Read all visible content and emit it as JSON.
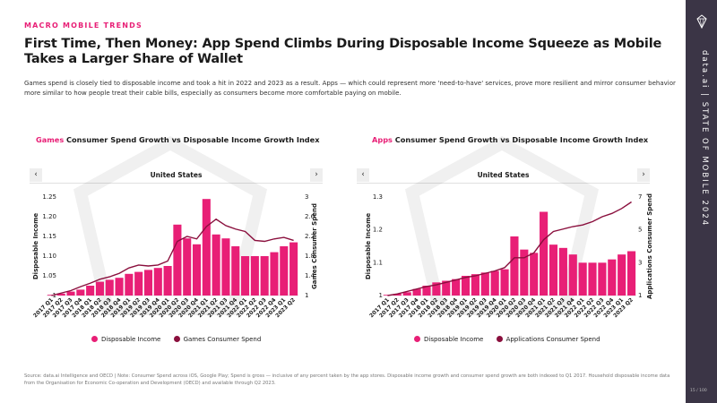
{
  "header": {
    "eyebrow": "MACRO MOBILE TRENDS",
    "title": "First Time, Then Money: App Spend Climbs During Disposable Income Squeeze as Mobile Takes a Larger Share of Wallet",
    "subtitle": "Games spend is closely tied to disposable income and took a hit in 2022 and 2023 as a result. Apps — which could represent more 'need-to-have' services, prove more resilient and mirror consumer behavior more similar to how people treat their cable bills, especially as consumers become more comfortable paying on mobile."
  },
  "sidebar": {
    "brand": "data.ai",
    "separator": "|",
    "report": "STATE OF MOBILE 2024",
    "logo_icon": "diamond-gem-icon"
  },
  "footnote": "Source: data.ai Intelligence and OECD | Note: Consumer Spend across iOS, Google Play; Spend is gross — inclusive of any percent taken by the app stores. Disposable income growth and consumer spend growth are both indexed to Q1 2017. Household disposable income data from the Organisation for Economic Co-operation and Development (OECD) and available through Q2 2023.",
  "page_number": "15 / 100",
  "colors": {
    "accent": "#e81f76",
    "line": "#8a0f3d",
    "sidebar": "#3b3546"
  },
  "chart_data": [
    {
      "type": "bar",
      "title_highlight": "Games",
      "title_rest": " Consumer Spend Growth vs Disposable Income Growth Index",
      "selector": {
        "value": "United States",
        "prev_icon": "chevron-left-icon",
        "next_icon": "chevron-right-icon"
      },
      "ylabel": "Disposable Income",
      "y2label": "Games Consumer Spend",
      "ylim": [
        1,
        1.25
      ],
      "yticks": [
        "1.25",
        "1.20",
        "1.15",
        "1.10",
        "1.05",
        "1"
      ],
      "yticks_values": [
        1.25,
        1.2,
        1.15,
        1.1,
        1.05,
        1
      ],
      "y2lim": [
        1,
        3
      ],
      "y2ticks": [
        "3",
        "2.6",
        "2.2",
        "1.8",
        "1.4",
        "1"
      ],
      "y2ticks_values": [
        3,
        2.6,
        2.2,
        1.8,
        1.4,
        1
      ],
      "categories": [
        "2017 Q1",
        "2017 Q2",
        "2017 Q3",
        "2017 Q4",
        "2018 Q1",
        "2018 Q2",
        "2018 Q3",
        "2018 Q4",
        "2019 Q1",
        "2019 Q2",
        "2019 Q3",
        "2019 Q4",
        "2020 Q1",
        "2020 Q2",
        "2020 Q3",
        "2020 Q4",
        "2021 Q1",
        "2021 Q2",
        "2021 Q3",
        "2021 Q4",
        "2022 Q1",
        "2022 Q2",
        "2022 Q3",
        "2022 Q4",
        "2023 Q1",
        "2023 Q2"
      ],
      "series": [
        {
          "name": "Disposable Income",
          "kind": "bar",
          "axis": "left",
          "values": [
            1.0,
            1.005,
            1.01,
            1.015,
            1.025,
            1.035,
            1.04,
            1.045,
            1.055,
            1.06,
            1.065,
            1.07,
            1.075,
            1.18,
            1.145,
            1.13,
            1.245,
            1.155,
            1.145,
            1.125,
            1.1,
            1.1,
            1.1,
            1.11,
            1.125,
            1.135
          ]
        },
        {
          "name": "Games Consumer Spend",
          "kind": "line",
          "axis": "right",
          "values": [
            1.0,
            1.05,
            1.1,
            1.18,
            1.25,
            1.33,
            1.38,
            1.45,
            1.56,
            1.62,
            1.6,
            1.62,
            1.7,
            2.1,
            2.2,
            2.15,
            2.4,
            2.55,
            2.42,
            2.35,
            2.3,
            2.12,
            2.1,
            2.15,
            2.18,
            2.12
          ]
        }
      ],
      "legend": "bottom-center"
    },
    {
      "type": "bar",
      "title_highlight": "Apps",
      "title_rest": " Consumer Spend Growth vs Disposable Income Growth Index",
      "selector": {
        "value": "United States",
        "prev_icon": "chevron-left-icon",
        "next_icon": "chevron-right-icon"
      },
      "ylabel": "Disposable Income",
      "y2label": "Applications Consumer Spend",
      "ylim": [
        1,
        1.3
      ],
      "yticks": [
        "1.3",
        "1.2",
        "1.1",
        "1"
      ],
      "yticks_values": [
        1.3,
        1.2,
        1.1,
        1
      ],
      "y2lim": [
        1,
        7
      ],
      "y2ticks": [
        "7",
        "5",
        "3",
        "1"
      ],
      "y2ticks_values": [
        7,
        5,
        3,
        1
      ],
      "categories": [
        "2017 Q1",
        "2017 Q2",
        "2017 Q3",
        "2017 Q4",
        "2018 Q1",
        "2018 Q2",
        "2018 Q3",
        "2018 Q4",
        "2019 Q1",
        "2019 Q2",
        "2019 Q3",
        "2019 Q4",
        "2020 Q1",
        "2020 Q2",
        "2020 Q3",
        "2020 Q4",
        "2021 Q1",
        "2021 Q2",
        "2021 Q3",
        "2021 Q4",
        "2022 Q1",
        "2022 Q2",
        "2022 Q3",
        "2022 Q4",
        "2023 Q1",
        "2023 Q2"
      ],
      "series": [
        {
          "name": "Disposable Income",
          "kind": "bar",
          "axis": "left",
          "values": [
            1.0,
            1.005,
            1.01,
            1.02,
            1.03,
            1.04,
            1.045,
            1.05,
            1.06,
            1.065,
            1.07,
            1.075,
            1.08,
            1.18,
            1.14,
            1.13,
            1.255,
            1.155,
            1.145,
            1.125,
            1.1,
            1.1,
            1.1,
            1.11,
            1.125,
            1.135
          ]
        },
        {
          "name": "Applications Consumer Spend",
          "kind": "line",
          "axis": "right",
          "values": [
            1.0,
            1.1,
            1.25,
            1.4,
            1.55,
            1.65,
            1.8,
            1.95,
            2.1,
            2.2,
            2.35,
            2.5,
            2.7,
            3.3,
            3.3,
            3.6,
            4.4,
            4.9,
            5.05,
            5.2,
            5.3,
            5.5,
            5.8,
            6.0,
            6.3,
            6.7
          ]
        }
      ],
      "legend": "bottom-center"
    }
  ]
}
